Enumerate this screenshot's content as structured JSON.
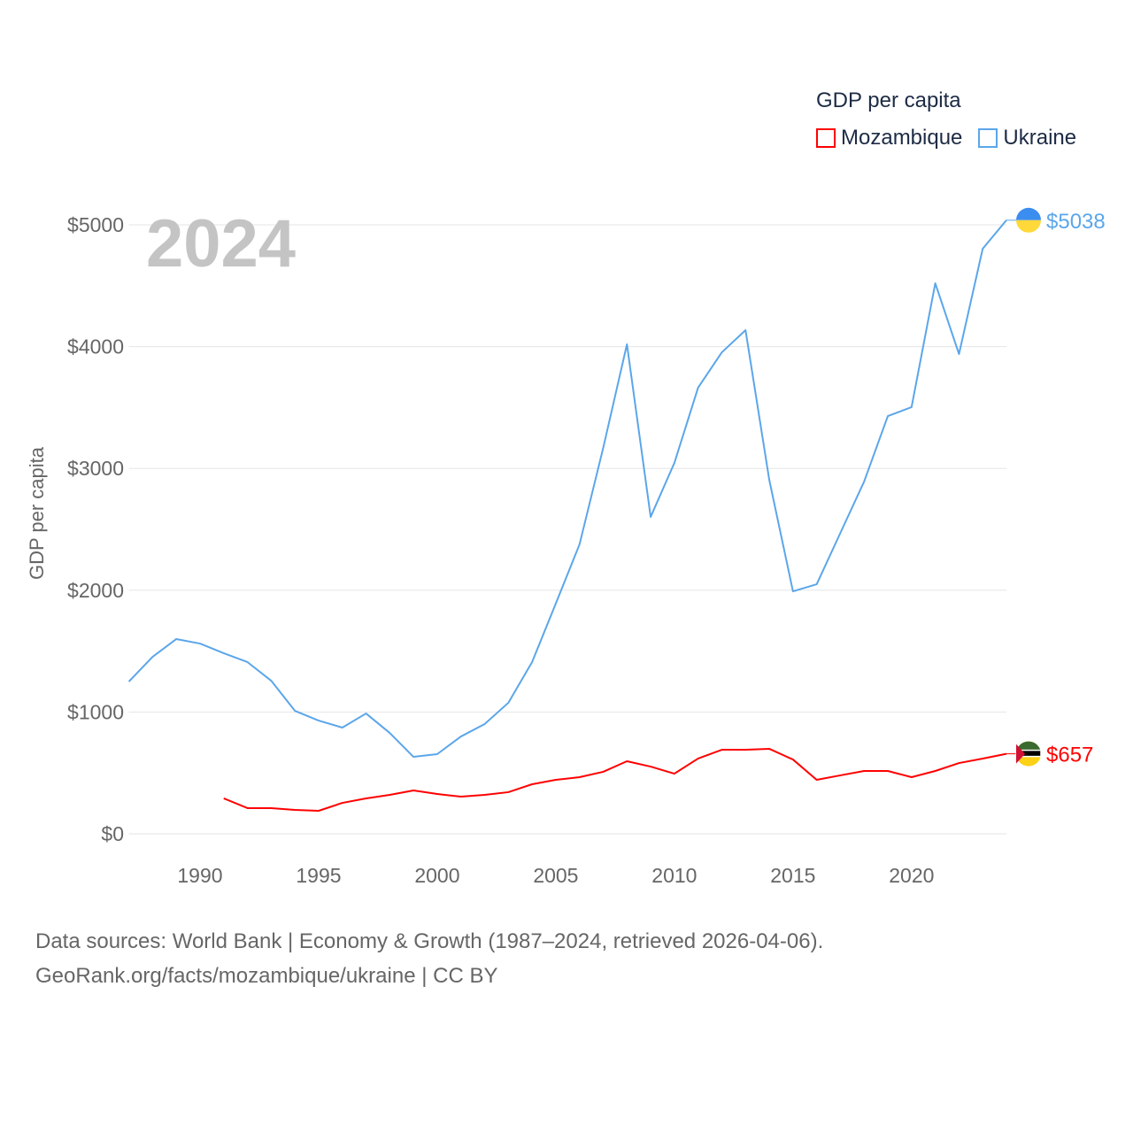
{
  "legend": {
    "title": "GDP per capita",
    "items": [
      {
        "label": "Mozambique",
        "color": "#ff0000"
      },
      {
        "label": "Ukraine",
        "color": "#5ba6ea"
      }
    ]
  },
  "year_label": "2024",
  "footer": {
    "line1": "Data sources: World Bank | Economy & Growth (1987–2024, retrieved 2026-04-06).",
    "line2": "GeoRank.org/facts/mozambique/ukraine | CC BY"
  },
  "chart_data": {
    "type": "line",
    "title": "GDP per capita",
    "xlabel": "",
    "ylabel": "GDP per capita",
    "xlim": [
      1987,
      2024
    ],
    "ylim": [
      0,
      5000
    ],
    "x_ticks": [
      1990,
      1995,
      2000,
      2005,
      2010,
      2015,
      2020
    ],
    "y_ticks": [
      {
        "v": 0,
        "label": "$0"
      },
      {
        "v": 1000,
        "label": "$1000"
      },
      {
        "v": 2000,
        "label": "$2000"
      },
      {
        "v": 3000,
        "label": "$3000"
      },
      {
        "v": 4000,
        "label": "$4000"
      },
      {
        "v": 5000,
        "label": "$5000"
      }
    ],
    "grid": true,
    "legend_position": "top-right",
    "series": [
      {
        "name": "Ukraine",
        "color": "#5ba6ea",
        "end_label": "$5038",
        "start_year": 1987,
        "values": [
          1250,
          1453,
          1599,
          1562,
          1483,
          1410,
          1257,
          1010,
          930,
          872,
          988,
          828,
          632,
          654,
          799,
          901,
          1076,
          1410,
          1890,
          2376,
          3169,
          4019,
          2602,
          3045,
          3663,
          3953,
          4135,
          2907,
          1991,
          2049,
          2471,
          2892,
          3430,
          3503,
          4520,
          3939,
          4804,
          5038
        ]
      },
      {
        "name": "Mozambique",
        "color": "#ff0000",
        "end_label": "$657",
        "start_year": 1991,
        "values": [
          291,
          211,
          211,
          196,
          189,
          254,
          291,
          320,
          356,
          327,
          305,
          320,
          342,
          407,
          443,
          465,
          509,
          596,
          552,
          494,
          618,
          690,
          690,
          698,
          610,
          443,
          480,
          516,
          516,
          465,
          516,
          581,
          618,
          657
        ]
      }
    ]
  }
}
